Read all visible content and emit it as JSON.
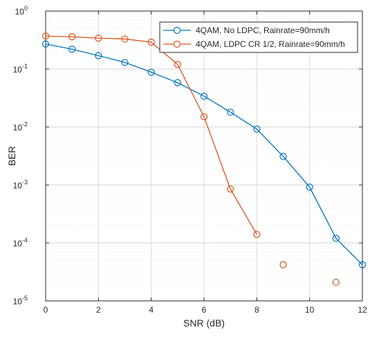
{
  "chart_data": {
    "type": "line",
    "xlabel": "SNR (dB)",
    "ylabel": "BER",
    "xlim": [
      0,
      12
    ],
    "ylim": [
      1e-05,
      1
    ],
    "yscale": "log",
    "grid": true,
    "legend_position": "top-right",
    "x_ticks": [
      "0",
      "2",
      "4",
      "6",
      "8",
      "10",
      "12"
    ],
    "y_ticks": [
      {
        "value": 1,
        "base": "10",
        "exp": "0"
      },
      {
        "value": 0.1,
        "base": "10",
        "exp": "-1"
      },
      {
        "value": 0.01,
        "base": "10",
        "exp": "-2"
      },
      {
        "value": 0.001,
        "base": "10",
        "exp": "-3"
      },
      {
        "value": 0.0001,
        "base": "10",
        "exp": "-4"
      },
      {
        "value": 1e-05,
        "base": "10",
        "exp": "-5"
      }
    ],
    "series": [
      {
        "name": "4QAM, No LDPC, Rainrate=90mm/h",
        "color": "#0072BD",
        "x": [
          0,
          1,
          2,
          3,
          4,
          5,
          6,
          7,
          8,
          9,
          10,
          11,
          12
        ],
        "y": [
          0.27,
          0.22,
          0.17,
          0.13,
          0.088,
          0.058,
          0.034,
          0.018,
          0.0092,
          0.0031,
          0.00092,
          0.00012,
          4.2e-05
        ],
        "line_points": 13
      },
      {
        "name": "4QAM, LDPC CR 1/2, Rainrate=90mm/h",
        "color": "#D95319",
        "x": [
          0,
          1,
          2,
          3,
          4,
          5,
          6,
          7,
          8,
          9,
          11
        ],
        "y": [
          0.37,
          0.36,
          0.34,
          0.33,
          0.29,
          0.12,
          0.015,
          0.00085,
          0.00014,
          4.2e-05,
          2.1e-05
        ],
        "line_points": 9
      }
    ]
  }
}
